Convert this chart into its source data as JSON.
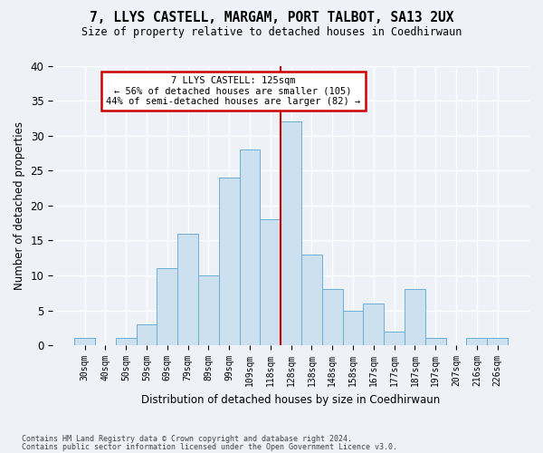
{
  "title": "7, LLYS CASTELL, MARGAM, PORT TALBOT, SA13 2UX",
  "subtitle": "Size of property relative to detached houses in Coedhirwaun",
  "xlabel": "Distribution of detached houses by size in Coedhirwaun",
  "ylabel": "Number of detached properties",
  "footnote1": "Contains HM Land Registry data © Crown copyright and database right 2024.",
  "footnote2": "Contains public sector information licensed under the Open Government Licence v3.0.",
  "categories": [
    "30sqm",
    "40sqm",
    "50sqm",
    "59sqm",
    "69sqm",
    "79sqm",
    "89sqm",
    "99sqm",
    "109sqm",
    "118sqm",
    "128sqm",
    "138sqm",
    "148sqm",
    "158sqm",
    "167sqm",
    "177sqm",
    "187sqm",
    "197sqm",
    "207sqm",
    "216sqm",
    "226sqm"
  ],
  "values": [
    1,
    0,
    1,
    3,
    11,
    16,
    10,
    24,
    28,
    18,
    32,
    13,
    8,
    5,
    6,
    2,
    8,
    1,
    0,
    1,
    1
  ],
  "bar_color": "#cde0f0",
  "bar_edge_color": "#6aaed6",
  "highlight_line_index": 10,
  "annotation_title": "7 LLYS CASTELL: 125sqm",
  "annotation_line1": "← 56% of detached houses are smaller (105)",
  "annotation_line2": "44% of semi-detached houses are larger (82) →",
  "annotation_box_color": "#ffffff",
  "annotation_box_edge_color": "#cc0000",
  "vline_color": "#cc0000",
  "background_color": "#eef2f7",
  "plot_bg_color": "#eef2f7",
  "ylim": [
    0,
    40
  ],
  "yticks": [
    0,
    5,
    10,
    15,
    20,
    25,
    30,
    35,
    40
  ]
}
